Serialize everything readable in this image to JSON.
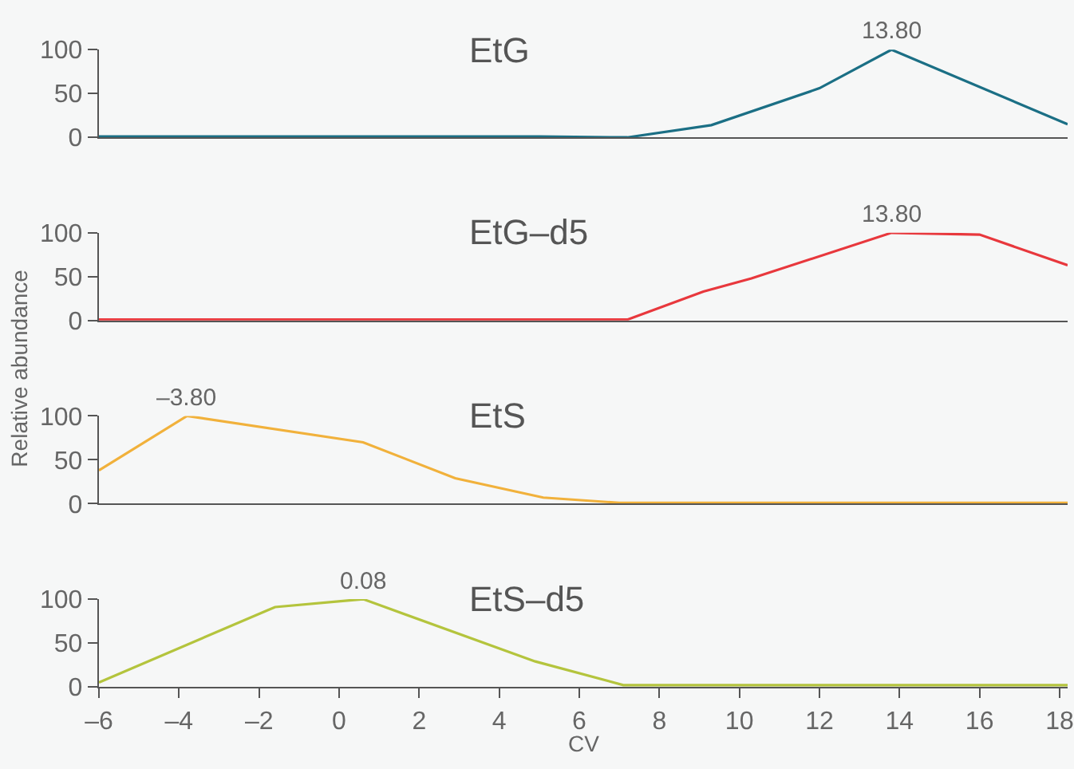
{
  "chart_data": [
    {
      "type": "line",
      "title": "EtG",
      "x": [
        -6,
        -3.8,
        -1.6,
        0.6,
        2.8,
        5.0,
        7.2,
        9.3,
        12.0,
        13.8,
        18.2
      ],
      "values": [
        1,
        1,
        1,
        1,
        1,
        1,
        0,
        14,
        56,
        100,
        15
      ],
      "color": "#1b6f85",
      "xlim": [
        -6,
        18.2
      ],
      "ylim": [
        0,
        100
      ],
      "yticks": [
        0,
        50,
        100
      ],
      "tick_labels": "y",
      "annotations": [
        {
          "text": "13.80",
          "x": 13.8,
          "y": 100
        }
      ]
    },
    {
      "type": "line",
      "title": "EtG–d5",
      "ylabel": "Relative abundance",
      "x": [
        -6,
        -3.8,
        -1.6,
        0.6,
        2.8,
        5.0,
        7.2,
        9.1,
        10.3,
        13.8,
        16.0,
        18.2
      ],
      "values": [
        1,
        1,
        1,
        1,
        1,
        1,
        1,
        33,
        48,
        100,
        98,
        63
      ],
      "color": "#e8383d",
      "xlim": [
        -6,
        18.2
      ],
      "ylim": [
        0,
        100
      ],
      "yticks": [
        0,
        50,
        100
      ],
      "tick_labels": "y",
      "annotations": [
        {
          "text": "13.80",
          "x": 13.8,
          "y": 100
        }
      ]
    },
    {
      "type": "line",
      "title": "EtS",
      "x": [
        -6,
        -3.8,
        0.6,
        2.9,
        5.1,
        7.0,
        9.4,
        11.6,
        13.8,
        16.0,
        18.2
      ],
      "values": [
        38,
        100,
        70,
        29,
        7,
        1,
        1,
        1,
        1,
        1,
        1
      ],
      "color": "#f1b13b",
      "xlim": [
        -6,
        18.2
      ],
      "ylim": [
        0,
        100
      ],
      "yticks": [
        0,
        50,
        100
      ],
      "tick_labels": "y",
      "annotations": [
        {
          "text": "–3.80",
          "x": -3.8,
          "y": 100
        }
      ]
    },
    {
      "type": "line",
      "title": "EtS–d5",
      "xlabel": "CV",
      "x": [
        -6,
        -1.6,
        0.6,
        4.9,
        7.1,
        9.4,
        11.6,
        13.8,
        16.0,
        18.2
      ],
      "values": [
        5,
        91,
        100,
        29,
        2,
        2,
        2,
        2,
        2,
        2
      ],
      "color": "#b4c43d",
      "xlim": [
        -6,
        18.2
      ],
      "ylim": [
        0,
        100
      ],
      "yticks": [
        0,
        50,
        100
      ],
      "xticks": [
        {
          "value": -6,
          "label": "–6"
        },
        {
          "value": -4,
          "label": "–4"
        },
        {
          "value": -2,
          "label": "–2"
        },
        0,
        2,
        4,
        6,
        8,
        10,
        12,
        14,
        16,
        18
      ],
      "annotations": [
        {
          "text": "0.08",
          "x": 0.6,
          "y": 100
        }
      ]
    }
  ]
}
